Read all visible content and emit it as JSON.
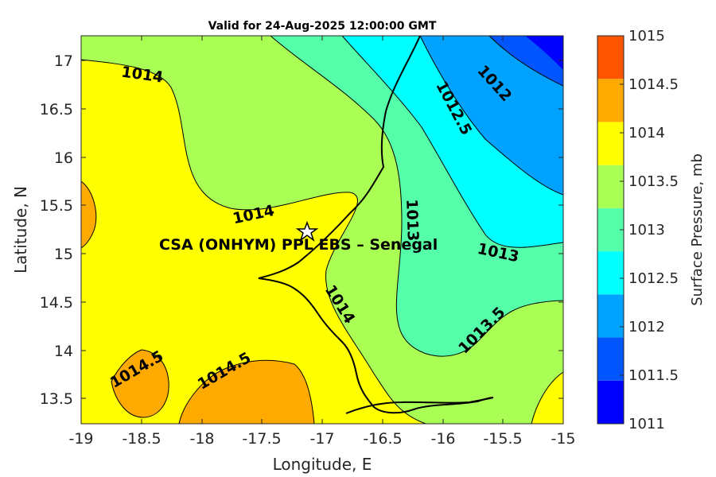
{
  "title": "Valid for 24-Aug-2025 12:00:00 GMT",
  "xlabel": "Longitude, E",
  "ylabel": "Latitude, N",
  "x_ticks": [
    "-19",
    "-18.5",
    "-18",
    "-17.5",
    "-17",
    "-16.5",
    "-16",
    "-15.5",
    "-15"
  ],
  "y_ticks": [
    "13.5",
    "14",
    "14.5",
    "15",
    "15.5",
    "16",
    "16.5",
    "17"
  ],
  "colorbar": {
    "label": "Surface Pressure, mb",
    "ticks": [
      "1011",
      "1011.5",
      "1012",
      "1012.5",
      "1013",
      "1013.5",
      "1014",
      "1014.5",
      "1015"
    ],
    "colors": [
      "#0000ff",
      "#0055ff",
      "#00a2ff",
      "#00ffff",
      "#55ffaa",
      "#aaff55",
      "#ffff00",
      "#ffaa00",
      "#ff5500"
    ]
  },
  "contour_labels": [
    "1014",
    "1012",
    "1012.5",
    "1014",
    "1013",
    "1013",
    "1014",
    "1013.5",
    "1014.5",
    "1014.5"
  ],
  "site": {
    "label": "CSA (ONHYM) PPL EBS  – Senegal",
    "marker_icon": "star-icon",
    "lon": -17.1,
    "lat": 15.2
  }
}
